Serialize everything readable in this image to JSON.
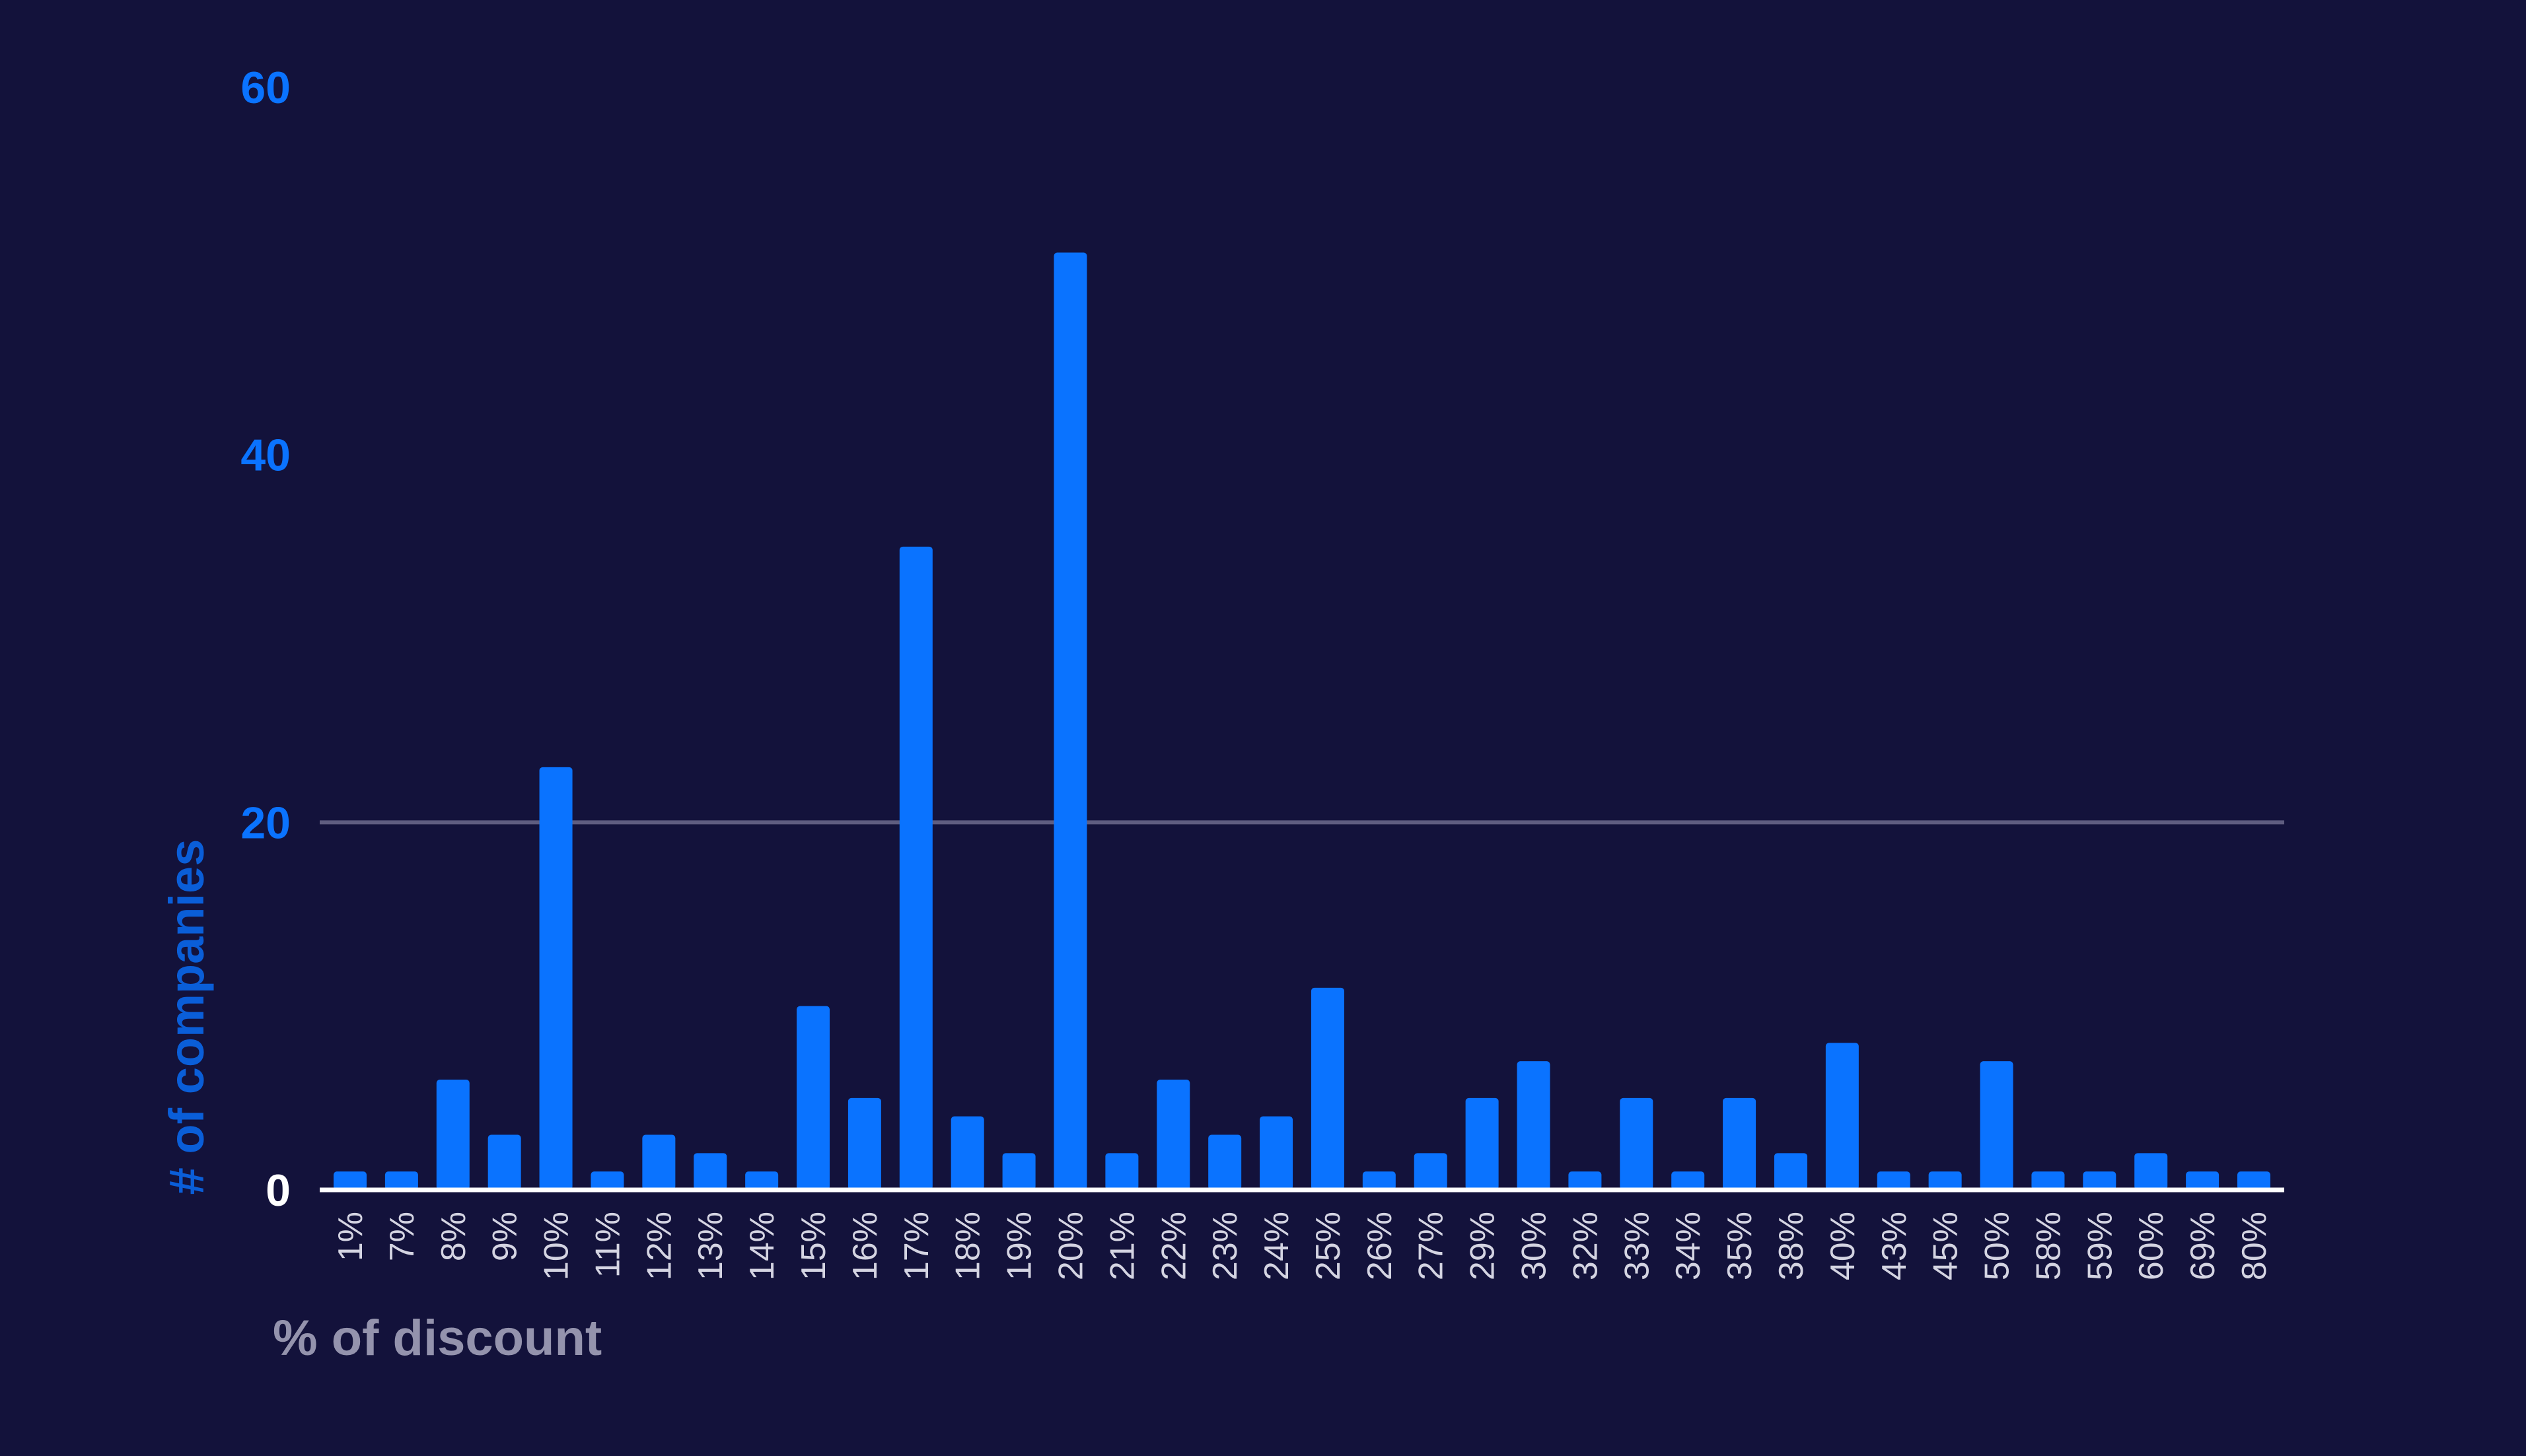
{
  "colors": {
    "background": "#13123b",
    "bar": "#0a73ff",
    "gridline": "#5f5d80",
    "baseline": "#ffffff",
    "y_tick_label": "#0a73ff",
    "y_zero_label": "#ffffff",
    "x_tick_label": "#d4d4e2",
    "y_axis_title": "#0a5ed8",
    "x_axis_title": "#9493ad"
  },
  "chart_data": {
    "type": "bar",
    "title": "",
    "xlabel": "% of discount",
    "ylabel": "# of companies",
    "ylim": [
      0,
      60
    ],
    "yticks": [
      0,
      20,
      40,
      60
    ],
    "ytick_labels": [
      "0",
      "20",
      "40",
      "60"
    ],
    "grid": true,
    "legend": "none",
    "categories": [
      "1%",
      "7%",
      "8%",
      "9%",
      "10%",
      "11%",
      "12%",
      "13%",
      "14%",
      "15%",
      "16%",
      "17%",
      "18%",
      "19%",
      "20%",
      "21%",
      "22%",
      "23%",
      "24%",
      "25%",
      "26%",
      "27%",
      "29%",
      "30%",
      "32%",
      "33%",
      "34%",
      "35%",
      "38%",
      "40%",
      "43%",
      "45%",
      "50%",
      "58%",
      "59%",
      "60%",
      "69%",
      "80%"
    ],
    "values": [
      1,
      1,
      6,
      3,
      23,
      1,
      3,
      2,
      1,
      10,
      5,
      35,
      4,
      2,
      51,
      2,
      6,
      3,
      4,
      11,
      1,
      2,
      5,
      7,
      1,
      5,
      1,
      5,
      2,
      8,
      1,
      1,
      7,
      1,
      1,
      2,
      1,
      1
    ]
  }
}
